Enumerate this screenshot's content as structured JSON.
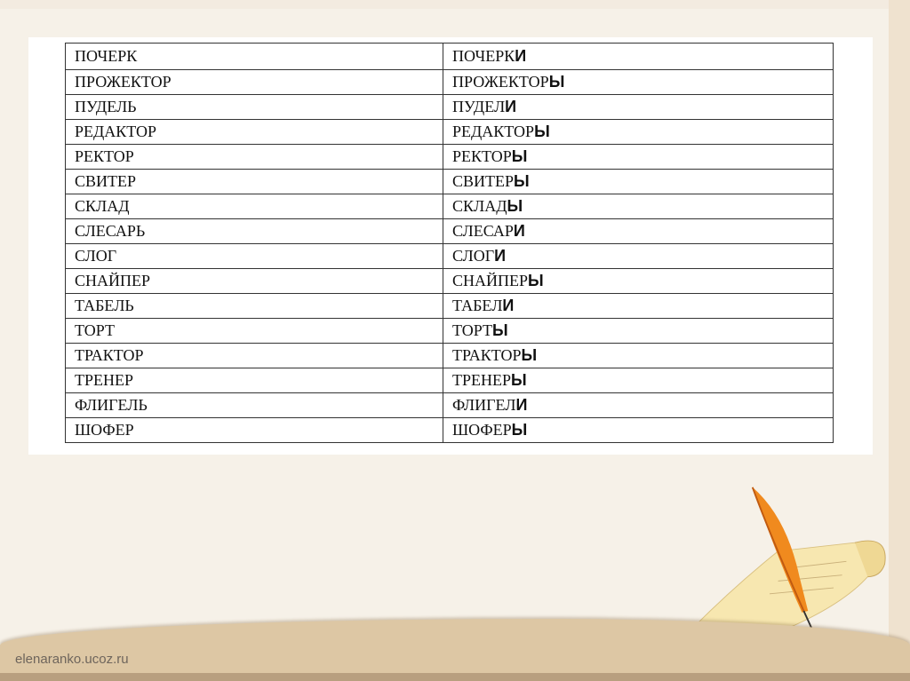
{
  "rows": [
    {
      "singular": "ПОЧЕРК",
      "plural_stem": "ПОЧЕРК",
      "plural_ending": "И"
    },
    {
      "singular": "ПРОЖЕКТОР",
      "plural_stem": "ПРОЖЕКТОР",
      "plural_ending": "Ы"
    },
    {
      "singular": "ПУДЕЛЬ",
      "plural_stem": "ПУДЕЛ",
      "plural_ending": "И"
    },
    {
      "singular": "РЕДАКТОР",
      "plural_stem": "РЕДАКТОР",
      "plural_ending": "Ы"
    },
    {
      "singular": "РЕКТОР",
      "plural_stem": "РЕКТОР",
      "plural_ending": "Ы"
    },
    {
      "singular": "СВИТЕР",
      "plural_stem": "СВИТЕР",
      "plural_ending": "Ы"
    },
    {
      "singular": "СКЛАД",
      "plural_stem": "СКЛАД",
      "plural_ending": "Ы"
    },
    {
      "singular": "СЛЕСАРЬ",
      "plural_stem": "СЛЕСАР",
      "plural_ending": "И"
    },
    {
      "singular": "СЛОГ",
      "plural_stem": "СЛОГ",
      "plural_ending": "И"
    },
    {
      "singular": "СНАЙПЕР",
      "plural_stem": "СНАЙПЕР",
      "plural_ending": "Ы"
    },
    {
      "singular": "ТАБЕЛЬ",
      "plural_stem": "ТАБЕЛ",
      "plural_ending": "И"
    },
    {
      "singular": "ТОРТ",
      "plural_stem": "ТОРТ",
      "plural_ending": "Ы"
    },
    {
      "singular": "ТРАКТОР",
      "plural_stem": "ТРАКТОР",
      "plural_ending": "Ы"
    },
    {
      "singular": "ТРЕНЕР",
      "plural_stem": "ТРЕНЕР",
      "plural_ending": "Ы"
    },
    {
      "singular": "ФЛИГЕЛЬ",
      "plural_stem": "ФЛИГЕЛ",
      "plural_ending": "И"
    },
    {
      "singular": "ШОФЕР",
      "plural_stem": "ШОФЕР",
      "plural_ending": "Ы"
    }
  ],
  "footer": {
    "site": "elenaranko.ucoz.ru"
  },
  "decoration": {
    "icon": "quill-and-scroll-icon"
  }
}
